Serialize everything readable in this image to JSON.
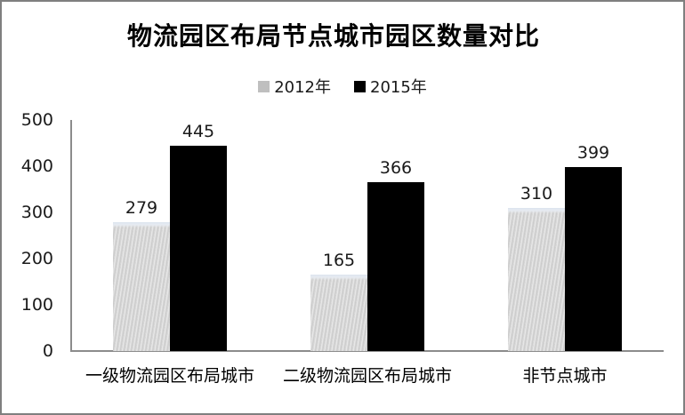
{
  "chart_data": {
    "type": "bar",
    "title": "物流园区布局节点城市园区数量对比",
    "categories": [
      "一级物流园区布局城市",
      "二级物流园区布局城市",
      "非节点城市"
    ],
    "series": [
      {
        "name": "2012年",
        "color": "#bfbfbf",
        "fill": "textured-light-gray",
        "values": [
          279,
          165,
          310
        ]
      },
      {
        "name": "2015年",
        "color": "#000000",
        "fill": "solid-black",
        "values": [
          445,
          366,
          399
        ]
      }
    ],
    "xlabel": "",
    "ylabel": "",
    "ylim": [
      0,
      500
    ],
    "yticks": [
      0,
      100,
      200,
      300,
      400,
      500
    ],
    "grid": false,
    "legend_position": "top",
    "bar_value_labels": true
  },
  "colors": {
    "axis": "#8c8c8c",
    "frame_border": "#7f7f7f",
    "text": "#1a1a1a"
  }
}
